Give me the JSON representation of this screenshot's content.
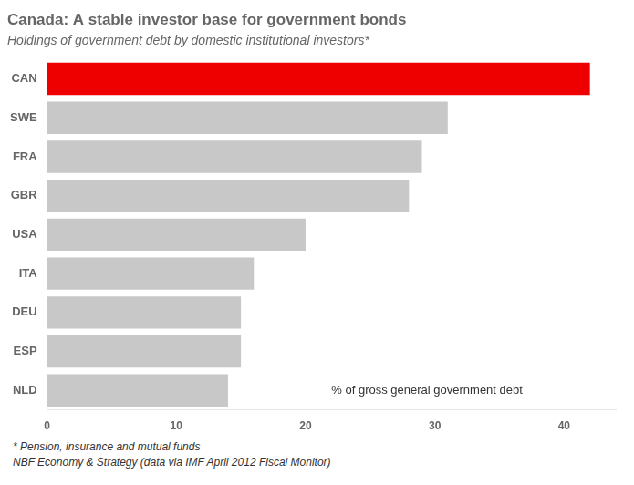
{
  "chart_data": {
    "type": "bar",
    "orientation": "horizontal",
    "title": "Canada: A stable investor base for government bonds",
    "subtitle": "Holdings of government debt by domestic institutional investors*",
    "categories": [
      "NLD",
      "ESP",
      "DEU",
      "ITA",
      "USA",
      "GBR",
      "FRA",
      "SWE",
      "CAN"
    ],
    "values": [
      14,
      15,
      15,
      16,
      20,
      28,
      29,
      31,
      42
    ],
    "colors": [
      "#c8c8c8",
      "#c8c8c8",
      "#c8c8c8",
      "#c8c8c8",
      "#c8c8c8",
      "#c8c8c8",
      "#c8c8c8",
      "#c8c8c8",
      "#ee0000"
    ],
    "xlim": [
      0,
      44
    ],
    "xticks": [
      0,
      10,
      20,
      30,
      40
    ],
    "grid": false,
    "annotation": "% of gross general government debt",
    "footnotes": [
      "* Pension, insurance and mutual funds",
      "NBF Economy & Strategy (data via IMF April 2012 Fiscal Monitor)"
    ]
  }
}
